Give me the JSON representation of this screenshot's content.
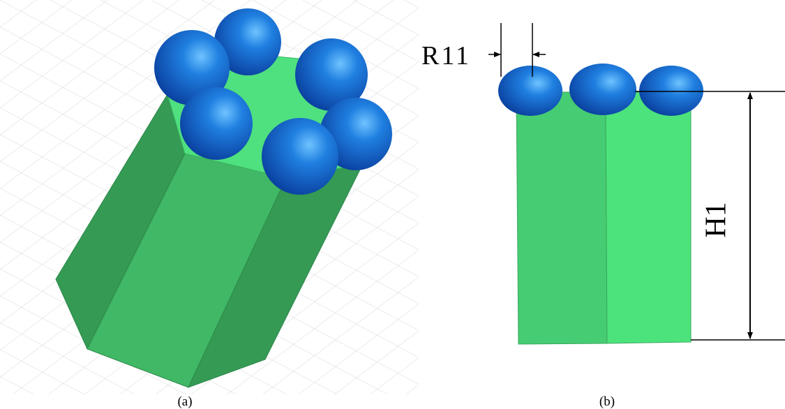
{
  "labels": {
    "a": "(a)",
    "b": "(b)"
  },
  "dimensions": {
    "R11": "R11",
    "H1": "H1"
  }
}
